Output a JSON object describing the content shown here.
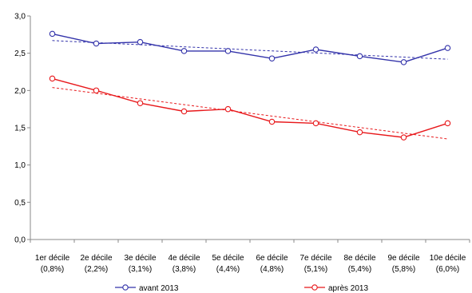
{
  "chart_data": {
    "type": "line",
    "categories": [
      [
        "1er décile",
        "(0,8%)"
      ],
      [
        "2e décile",
        "(2,2%)"
      ],
      [
        "3e décile",
        "(3,1%)"
      ],
      [
        "4e décile",
        "(3,8%)"
      ],
      [
        "5e décile",
        "(4,4%)"
      ],
      [
        "6e décile",
        "(4,8%)"
      ],
      [
        "7e décile",
        "(5,1%)"
      ],
      [
        "8e décile",
        "(5,4%)"
      ],
      [
        "9e décile",
        "(5,8%)"
      ],
      [
        "10e décile",
        "(6,0%)"
      ]
    ],
    "y_ticks": [
      "0,0",
      "0,5",
      "1,0",
      "1,5",
      "2,0",
      "2,5",
      "3,0"
    ],
    "ylim": [
      0,
      3
    ],
    "grid": false,
    "legend_position": "bottom",
    "series": [
      {
        "name": "avant 2013",
        "color": "#3333aa",
        "values": [
          2.76,
          2.63,
          2.65,
          2.53,
          2.53,
          2.43,
          2.55,
          2.46,
          2.38,
          2.57
        ],
        "trendline": [
          2.67,
          2.42
        ]
      },
      {
        "name": "après 2013",
        "color": "#e8181b",
        "values": [
          2.16,
          2.0,
          1.83,
          1.72,
          1.75,
          1.58,
          1.56,
          1.44,
          1.37,
          1.56
        ],
        "trendline": [
          2.04,
          1.35
        ]
      }
    ]
  }
}
